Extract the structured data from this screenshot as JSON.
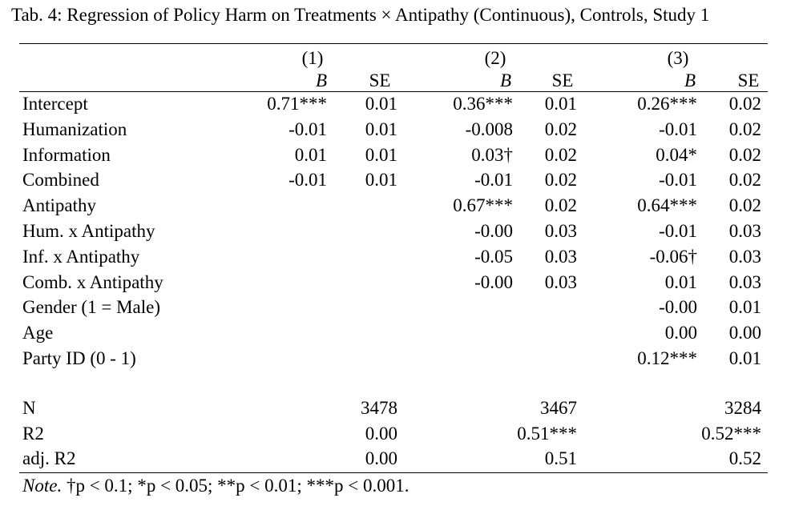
{
  "title": "Tab. 4: Regression of Policy Harm on Treatments × Antipathy (Continuous), Controls, Study 1",
  "models": [
    "(1)",
    "(2)",
    "(3)"
  ],
  "coef_header": "B",
  "se_header": "SE",
  "rows": [
    {
      "label": "Intercept",
      "m1_b": "0.71***",
      "m1_se": "0.01",
      "m2_b": "0.36***",
      "m2_se": "0.01",
      "m3_b": "0.26***",
      "m3_se": "0.02"
    },
    {
      "label": "Humanization",
      "m1_b": "-0.01",
      "m1_se": "0.01",
      "m2_b": "-0.008",
      "m2_se": "0.02",
      "m3_b": "-0.01",
      "m3_se": "0.02"
    },
    {
      "label": "Information",
      "m1_b": "0.01",
      "m1_se": "0.01",
      "m2_b": "0.03†",
      "m2_se": "0.02",
      "m3_b": "0.04*",
      "m3_se": "0.02"
    },
    {
      "label": "Combined",
      "m1_b": "-0.01",
      "m1_se": "0.01",
      "m2_b": "-0.01",
      "m2_se": "0.02",
      "m3_b": "-0.01",
      "m3_se": "0.02"
    },
    {
      "label": "Antipathy",
      "m1_b": "",
      "m1_se": "",
      "m2_b": "0.67***",
      "m2_se": "0.02",
      "m3_b": "0.64***",
      "m3_se": "0.02"
    },
    {
      "label": "Hum. x Antipathy",
      "m1_b": "",
      "m1_se": "",
      "m2_b": "-0.00",
      "m2_se": "0.03",
      "m3_b": "-0.01",
      "m3_se": "0.03"
    },
    {
      "label": "Inf. x Antipathy",
      "m1_b": "",
      "m1_se": "",
      "m2_b": "-0.05",
      "m2_se": "0.03",
      "m3_b": "-0.06†",
      "m3_se": "0.03"
    },
    {
      "label": "Comb. x Antipathy",
      "m1_b": "",
      "m1_se": "",
      "m2_b": "-0.00",
      "m2_se": "0.03",
      "m3_b": "0.01",
      "m3_se": "0.03"
    },
    {
      "label": "Gender (1 = Male)",
      "m1_b": "",
      "m1_se": "",
      "m2_b": "",
      "m2_se": "",
      "m3_b": "-0.00",
      "m3_se": "0.01"
    },
    {
      "label": "Age",
      "m1_b": "",
      "m1_se": "",
      "m2_b": "",
      "m2_se": "",
      "m3_b": "0.00",
      "m3_se": "0.00"
    },
    {
      "label": "Party ID (0 - 1)",
      "m1_b": "",
      "m1_se": "",
      "m2_b": "",
      "m2_se": "",
      "m3_b": "0.12***",
      "m3_se": "0.01"
    }
  ],
  "stats": [
    {
      "label": "N",
      "m1": "3478",
      "m2": "3467",
      "m3": "3284"
    },
    {
      "label": "R2",
      "m1": "0.00",
      "m2": "0.51***",
      "m3": "0.52***"
    },
    {
      "label": "adj. R2",
      "m1": "0.00",
      "m2": "0.51",
      "m3": "0.52"
    }
  ],
  "note": {
    "lead": "Note.",
    "text": "†p < 0.1; *p < 0.05; **p < 0.01; ***p < 0.001."
  }
}
